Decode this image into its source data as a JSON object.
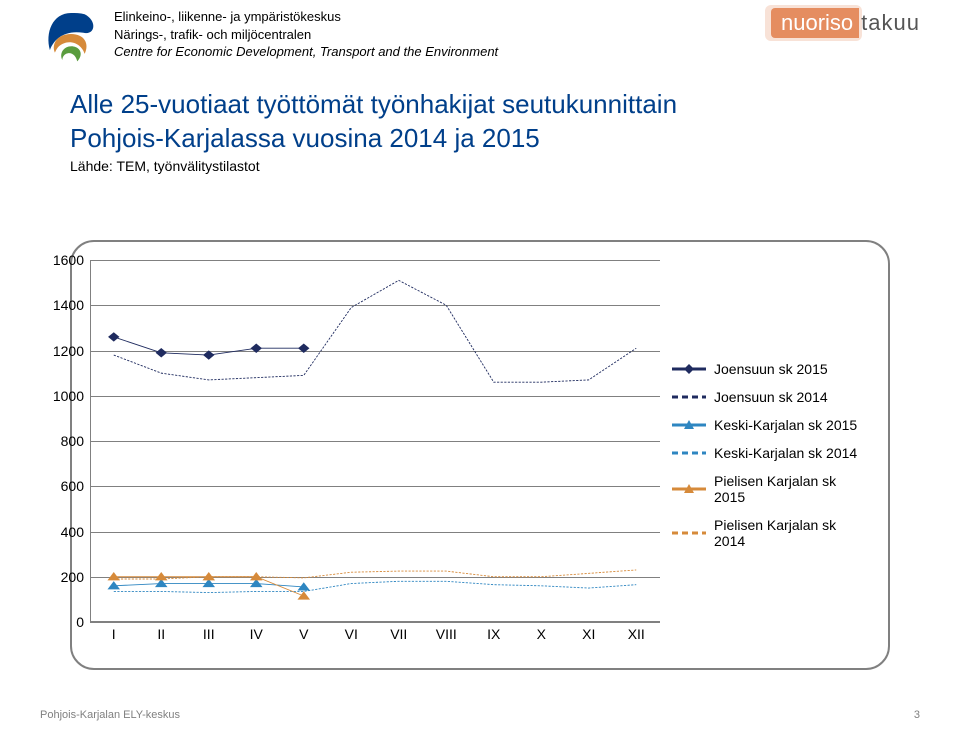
{
  "header": {
    "agency_fi": "Elinkeino-, liikenne- ja ympäristökeskus",
    "agency_sv": "Närings-, trafik- och miljöcentralen",
    "agency_en": "Centre for Economic Development, Transport and the Environment",
    "brand_a": "nuoriso",
    "brand_b": "takuu"
  },
  "title_line1": "Alle 25-vuotiaat työttömät työnhakijat seutukunnittain",
  "title_line2": "Pohjois-Karjalassa vuosina 2014 ja 2015",
  "subtitle": "Lähde: TEM, työnvälitystilastot",
  "footer": "Pohjois-Karjalan ELY-keskus",
  "page_number": "3",
  "chart": {
    "type": "line",
    "background_color": "#ffffff",
    "border_color": "#808080",
    "grid_color": "#808080",
    "font_size_axis": 14,
    "x_labels": [
      "I",
      "II",
      "III",
      "IV",
      "V",
      "VI",
      "VII",
      "VIII",
      "IX",
      "X",
      "XI",
      "XII"
    ],
    "x_positions": [
      1,
      2,
      3,
      4,
      5,
      6,
      7,
      8,
      9,
      10,
      11,
      12
    ],
    "xlim": [
      0.5,
      12.5
    ],
    "ylim": [
      0,
      1600
    ],
    "ytick_step": 200,
    "yticks": [
      0,
      200,
      400,
      600,
      800,
      1000,
      1200,
      1400,
      1600
    ],
    "series": [
      {
        "name": "Joensuun sk 2015",
        "color": "#1f2b5f",
        "dash": false,
        "marker": "diamond",
        "values": [
          1260,
          1190,
          1180,
          1210,
          1210,
          null,
          null,
          null,
          null,
          null,
          null,
          null
        ]
      },
      {
        "name": "Joensuun sk 2014",
        "color": "#1f2b5f",
        "dash": true,
        "marker": null,
        "values": [
          1180,
          1100,
          1070,
          1080,
          1090,
          1390,
          1510,
          1400,
          1060,
          1060,
          1070,
          1210
        ]
      },
      {
        "name": "Keski-Karjalan sk 2015",
        "color": "#2e86c1",
        "dash": false,
        "marker": "triangle",
        "values": [
          160,
          170,
          170,
          170,
          155,
          null,
          null,
          null,
          null,
          null,
          null,
          null
        ]
      },
      {
        "name": "Keski-Karjalan sk 2014",
        "color": "#2e86c1",
        "dash": true,
        "marker": null,
        "values": [
          135,
          135,
          130,
          135,
          135,
          170,
          180,
          180,
          165,
          160,
          150,
          165
        ]
      },
      {
        "name": "Pielisen Karjalan sk 2015",
        "color": "#d68a3a",
        "dash": false,
        "marker": "triangle",
        "values": [
          200,
          200,
          200,
          200,
          115,
          null,
          null,
          null,
          null,
          null,
          null,
          null
        ]
      },
      {
        "name": "Pielisen Karjalan sk 2014",
        "color": "#d68a3a",
        "dash": true,
        "marker": null,
        "values": [
          190,
          190,
          200,
          200,
          195,
          220,
          225,
          225,
          200,
          200,
          215,
          230
        ]
      }
    ]
  },
  "logo": {
    "outer": "#003f8a",
    "mid": "#d68a3a",
    "inner": "#5a9c3e"
  }
}
